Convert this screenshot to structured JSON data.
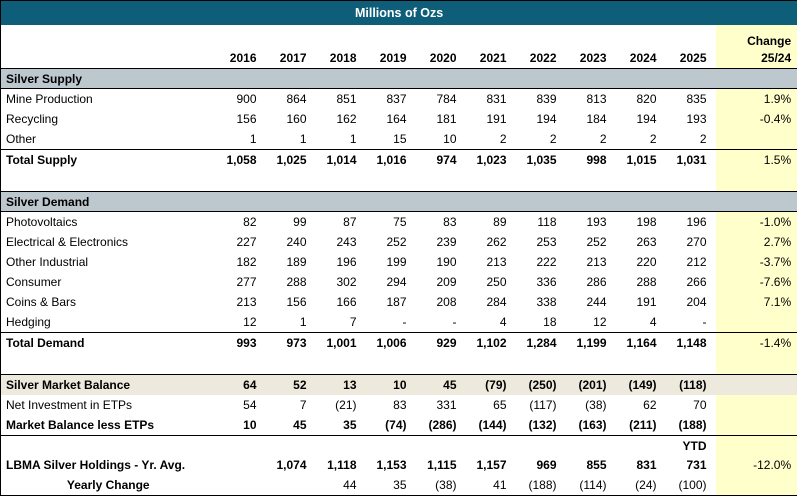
{
  "colors": {
    "header_bg": "#0F5E79",
    "section_bg": "#BCC7CE",
    "change_bg": "#FFFFCC",
    "balance_bg": "#EDE9DC",
    "text": "#000000",
    "title_text": "#FFFFFF"
  },
  "chart_data": {
    "type": "table",
    "title": "Millions of Ozs",
    "unit": "Millions of Ozs",
    "columns": [
      "2016",
      "2017",
      "2018",
      "2019",
      "2020",
      "2021",
      "2022",
      "2023",
      "2024",
      "2025"
    ],
    "change_header": {
      "line1": "Change",
      "line2": "25/24"
    },
    "rows": [
      {
        "type": "section",
        "label": "Silver Supply"
      },
      {
        "type": "data",
        "label": "Mine Production",
        "values": [
          "900",
          "864",
          "851",
          "837",
          "784",
          "831",
          "839",
          "813",
          "820",
          "835"
        ],
        "change": "1.9%"
      },
      {
        "type": "data",
        "label": "Recycling",
        "values": [
          "156",
          "160",
          "162",
          "164",
          "181",
          "191",
          "194",
          "184",
          "194",
          "193"
        ],
        "change": "-0.4%"
      },
      {
        "type": "data",
        "label": "Other",
        "values": [
          "1",
          "1",
          "1",
          "15",
          "10",
          "2",
          "2",
          "2",
          "2",
          "2"
        ],
        "change": ""
      },
      {
        "type": "total",
        "label": "Total Supply",
        "values": [
          "1,058",
          "1,025",
          "1,014",
          "1,016",
          "974",
          "1,023",
          "1,035",
          "998",
          "1,015",
          "1,031"
        ],
        "change": "1.5%"
      },
      {
        "type": "blank"
      },
      {
        "type": "section",
        "label": "Silver Demand"
      },
      {
        "type": "data",
        "label": "Photovoltaics",
        "values": [
          "82",
          "99",
          "87",
          "75",
          "83",
          "89",
          "118",
          "193",
          "198",
          "196"
        ],
        "change": "-1.0%"
      },
      {
        "type": "data",
        "label": "Electrical & Electronics",
        "values": [
          "227",
          "240",
          "243",
          "252",
          "239",
          "262",
          "253",
          "252",
          "263",
          "270"
        ],
        "change": "2.7%"
      },
      {
        "type": "data",
        "label": "Other Industrial",
        "values": [
          "182",
          "189",
          "196",
          "199",
          "190",
          "213",
          "222",
          "213",
          "220",
          "212"
        ],
        "change": "-3.7%"
      },
      {
        "type": "data",
        "label": "Consumer",
        "values": [
          "277",
          "288",
          "302",
          "294",
          "209",
          "250",
          "336",
          "286",
          "288",
          "266"
        ],
        "change": "-7.6%"
      },
      {
        "type": "data",
        "label": "Coins & Bars",
        "values": [
          "213",
          "156",
          "166",
          "187",
          "208",
          "284",
          "338",
          "244",
          "191",
          "204"
        ],
        "change": "7.1%"
      },
      {
        "type": "data",
        "label": "Hedging",
        "values": [
          "12",
          "1",
          "7",
          "-",
          "-",
          "4",
          "18",
          "12",
          "4",
          "-"
        ],
        "change": ""
      },
      {
        "type": "total",
        "label": "Total Demand",
        "values": [
          "993",
          "973",
          "1,001",
          "1,006",
          "929",
          "1,102",
          "1,284",
          "1,199",
          "1,164",
          "1,148"
        ],
        "change": "-1.4%"
      },
      {
        "type": "blank"
      },
      {
        "type": "balance",
        "label": "Silver Market Balance",
        "values": [
          "64",
          "52",
          "13",
          "10",
          "45",
          "(79)",
          "(250)",
          "(201)",
          "(149)",
          "(118)"
        ],
        "change": ""
      },
      {
        "type": "data",
        "label": "Net Investment in ETPs",
        "values": [
          "54",
          "7",
          "(21)",
          "83",
          "331",
          "65",
          "(117)",
          "(38)",
          "62",
          "70"
        ],
        "change": ""
      },
      {
        "type": "total2",
        "label": "Market Balance less ETPs",
        "values": [
          "10",
          "45",
          "35",
          "(74)",
          "(286)",
          "(144)",
          "(132)",
          "(163)",
          "(211)",
          "(188)"
        ],
        "change": ""
      },
      {
        "type": "ytd",
        "label": "",
        "values": [
          "",
          "",
          "",
          "",
          "",
          "",
          "",
          "",
          "",
          "YTD"
        ],
        "change": ""
      },
      {
        "type": "lbma",
        "label": "LBMA Silver Holdings - Yr. Avg.",
        "values": [
          "",
          "1,074",
          "1,118",
          "1,153",
          "1,115",
          "1,157",
          "969",
          "855",
          "831",
          "731"
        ],
        "change": "-12.0%"
      },
      {
        "type": "yearly",
        "label": "Yearly Change",
        "values": [
          "",
          "",
          "44",
          "35",
          "(38)",
          "41",
          "(188)",
          "(114)",
          "(24)",
          "(100)"
        ],
        "change": ""
      }
    ]
  }
}
